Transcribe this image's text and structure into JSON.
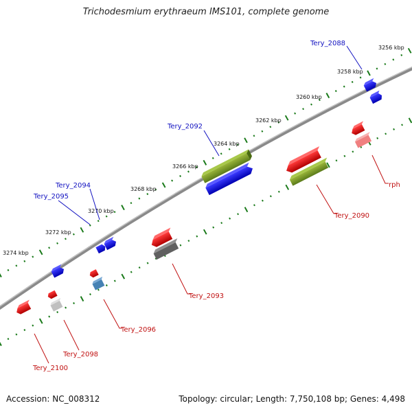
{
  "title": "Trichodesmium erythraeum IMS101, complete genome",
  "accession": "Accession: NC_008312",
  "topology": "Topology: circular; Length: 7,750,108 bp; Genes: 4,498",
  "scale_labels": [
    "3256 kbp",
    "3258 kbp",
    "3260 kbp",
    "3262 kbp",
    "3264 kbp",
    "3266 kbp",
    "3268 kbp",
    "3270 kbp",
    "3272 kbp",
    "3274 kbp"
  ],
  "gene_labels": {
    "forward": [
      "Tery_2088",
      "Tery_2092",
      "Tery_2094",
      "Tery_2095"
    ],
    "reverse": [
      "Tery_2090",
      "Tery_2093",
      "Tery_2096",
      "Tery_2098",
      "Tery_2100",
      "rph"
    ]
  },
  "colors": {
    "forward_label": "#1010c0",
    "reverse_label": "#c01010",
    "backbone": "#8a8a8a",
    "ticks": "#1a7a1a",
    "forward_cds": "#0000ee",
    "reverse_cds": "#ee0000",
    "olive": "#6b8e23",
    "gray_feature": "#606060",
    "pink_feature": "#f08080",
    "steel_feature": "#4682b4",
    "lightgray_feature": "#c0c0c0"
  }
}
